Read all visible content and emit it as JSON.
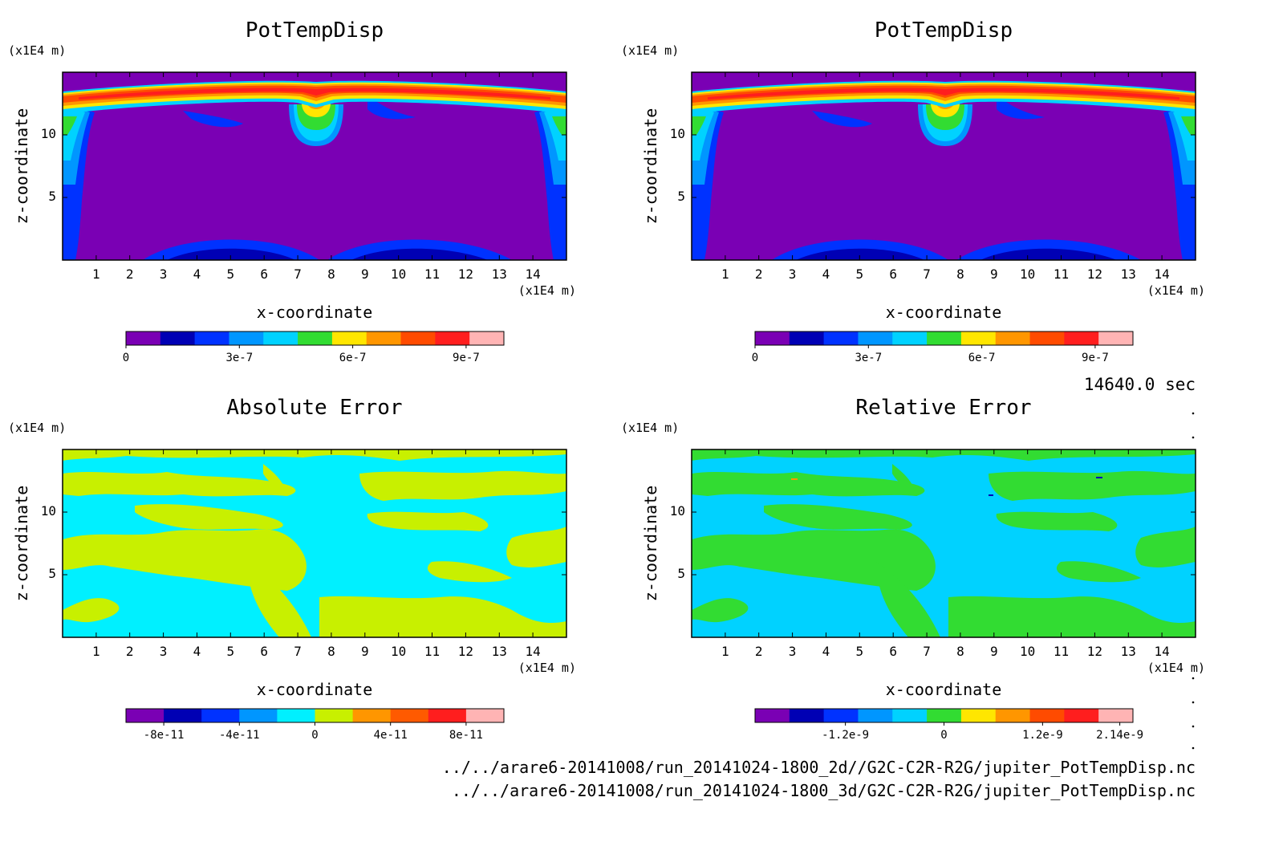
{
  "chart_data": [
    {
      "type": "heatmap",
      "title": "PotTempDisp",
      "xlabel": "x-coordinate",
      "ylabel": "z-coordinate",
      "x_unit": "(x1E4 m)",
      "y_unit": "(x1E4 m)",
      "xlim": [
        0,
        15
      ],
      "ylim": [
        0,
        15
      ],
      "x_ticks": [
        "1",
        "2",
        "3",
        "4",
        "5",
        "6",
        "7",
        "8",
        "9",
        "10",
        "11",
        "12",
        "13",
        "14"
      ],
      "y_ticks": [
        "5",
        "10"
      ],
      "colorbar": {
        "colors": [
          "#7a00b4",
          "#0000b4",
          "#0032ff",
          "#0096ff",
          "#00d2ff",
          "#32dc32",
          "#ffe600",
          "#ff9600",
          "#ff4b00",
          "#ff1e1e",
          "#ffb4b4"
        ],
        "tick_labels": [
          "0",
          "3e-7",
          "6e-7",
          "9e-7"
        ],
        "min": 0,
        "max": 1e-06
      },
      "fields": [
        "background ~0 (purple)",
        "upper layer z≈11–14 with max ~9e-7 (red)",
        "central plume at x≈7.5",
        "lateral columns at x≈0.5 and x≈14.5",
        "low lobes at z≈0–1.5"
      ]
    },
    {
      "type": "heatmap",
      "title": "PotTempDisp",
      "xlabel": "x-coordinate",
      "ylabel": "z-coordinate",
      "x_unit": "(x1E4 m)",
      "y_unit": "(x1E4 m)",
      "xlim": [
        0,
        15
      ],
      "ylim": [
        0,
        15
      ],
      "x_ticks": [
        "1",
        "2",
        "3",
        "4",
        "5",
        "6",
        "7",
        "8",
        "9",
        "10",
        "11",
        "12",
        "13",
        "14"
      ],
      "y_ticks": [
        "5",
        "10"
      ],
      "colorbar": {
        "colors": [
          "#7a00b4",
          "#0000b4",
          "#0032ff",
          "#0096ff",
          "#00d2ff",
          "#32dc32",
          "#ffe600",
          "#ff9600",
          "#ff4b00",
          "#ff1e1e",
          "#ffb4b4"
        ],
        "tick_labels": [
          "0",
          "3e-7",
          "6e-7",
          "9e-7"
        ],
        "min": 0,
        "max": 1e-06
      }
    },
    {
      "type": "heatmap",
      "title": "Absolute Error",
      "xlabel": "x-coordinate",
      "ylabel": "z-coordinate",
      "x_unit": "(x1E4 m)",
      "y_unit": "(x1E4 m)",
      "xlim": [
        0,
        15
      ],
      "ylim": [
        0,
        15
      ],
      "x_ticks": [
        "1",
        "2",
        "3",
        "4",
        "5",
        "6",
        "7",
        "8",
        "9",
        "10",
        "11",
        "12",
        "13",
        "14"
      ],
      "y_ticks": [
        "5",
        "10"
      ],
      "colorbar": {
        "colors": [
          "#7a00b4",
          "#0000b4",
          "#0032ff",
          "#0096ff",
          "#00f0ff",
          "#c8f000",
          "#ff9600",
          "#ff5a00",
          "#ff1e1e",
          "#ffb4b4"
        ],
        "tick_labels": [
          "-8e-11",
          "-4e-11",
          "0",
          "4e-11",
          "8e-11"
        ],
        "min": -1e-10,
        "max": 1e-10
      }
    },
    {
      "type": "heatmap",
      "title": "Relative Error",
      "xlabel": "x-coordinate",
      "ylabel": "z-coordinate",
      "x_unit": "(x1E4 m)",
      "y_unit": "(x1E4 m)",
      "xlim": [
        0,
        15
      ],
      "ylim": [
        0,
        15
      ],
      "x_ticks": [
        "1",
        "2",
        "3",
        "4",
        "5",
        "6",
        "7",
        "8",
        "9",
        "10",
        "11",
        "12",
        "13",
        "14"
      ],
      "y_ticks": [
        "5",
        "10"
      ],
      "colorbar": {
        "colors": [
          "#7a00b4",
          "#0000b4",
          "#0032ff",
          "#0096ff",
          "#00d2ff",
          "#32dc32",
          "#ffe600",
          "#ff9600",
          "#ff4b00",
          "#ff1e1e",
          "#ffb4b4"
        ],
        "tick_labels": [
          "-1.2e-9",
          "0",
          "1.2e-9",
          "2.14e-9"
        ],
        "min": -2.3e-09,
        "max": 2.3e-09
      }
    }
  ],
  "time_label": "14640.0 sec",
  "file_paths": [
    "../../arare6-20141008/run_20141024-1800_2d//G2C-C2R-R2G/jupiter_PotTempDisp.nc",
    "../../arare6-20141008/run_20141024-1800_3d/G2C-C2R-R2G/jupiter_PotTempDisp.nc"
  ]
}
